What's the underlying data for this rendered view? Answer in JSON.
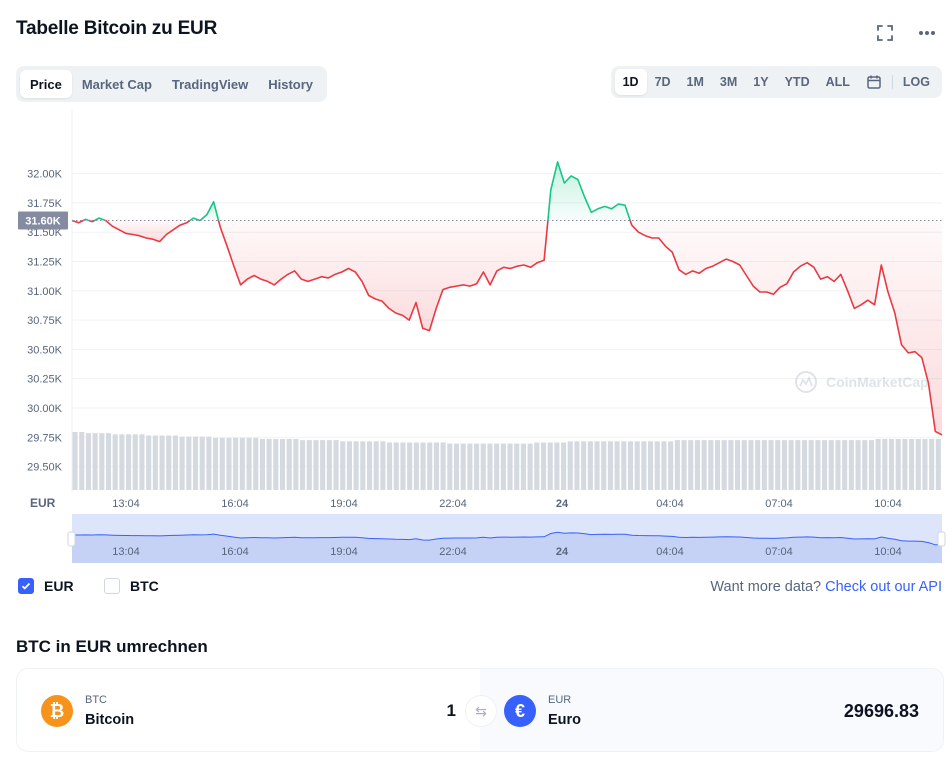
{
  "header": {
    "title": "Tabelle Bitcoin zu EUR",
    "icons": [
      "fullscreen-icon",
      "more-icon"
    ]
  },
  "tabs": [
    {
      "label": "Price",
      "active": true
    },
    {
      "label": "Market Cap",
      "active": false
    },
    {
      "label": "TradingView",
      "active": false
    },
    {
      "label": "History",
      "active": false
    }
  ],
  "ranges": {
    "items": [
      {
        "label": "1D",
        "active": true
      },
      {
        "label": "7D",
        "active": false
      },
      {
        "label": "1M",
        "active": false
      },
      {
        "label": "3M",
        "active": false
      },
      {
        "label": "1Y",
        "active": false
      },
      {
        "label": "YTD",
        "active": false
      },
      {
        "label": "ALL",
        "active": false
      }
    ],
    "calendar_icon": "calendar-icon",
    "log_label": "LOG"
  },
  "chart_data": {
    "type": "line",
    "xlabel": "EUR",
    "x_ticks": [
      "13:04",
      "16:04",
      "19:04",
      "22:04",
      "24",
      "04:04",
      "07:04",
      "10:04"
    ],
    "y_ticks": [
      "32.00K",
      "31.75K",
      "31.50K",
      "31.25K",
      "31.00K",
      "30.75K",
      "30.50K",
      "30.25K",
      "30.00K",
      "29.75K",
      "29.50K"
    ],
    "ylim": [
      29300,
      32500
    ],
    "reference_value": 31600,
    "reference_label": "31.60K",
    "colors": {
      "up": "#16c784",
      "down": "#ea3943",
      "reference": "#858ca2"
    },
    "watermark": "CoinMarketCap",
    "series": [
      {
        "values": [
          31600,
          31580,
          31610,
          31590,
          31620,
          31600,
          31550,
          31520,
          31490,
          31480,
          31470,
          31450,
          31440,
          31420,
          31480,
          31520,
          31560,
          31580,
          31620,
          31600,
          31650,
          31760,
          31540,
          31380,
          31210,
          31050,
          31100,
          31130,
          31100,
          31080,
          31050,
          31100,
          31140,
          31170,
          31100,
          31080,
          31100,
          31120,
          31110,
          31140,
          31160,
          31190,
          31160,
          31080,
          30960,
          30930,
          30910,
          30850,
          30810,
          30790,
          30750,
          30900,
          30680,
          30660,
          30850,
          31010,
          31030,
          31040,
          31050,
          31040,
          31060,
          31160,
          31050,
          31170,
          31200,
          31190,
          31210,
          31220,
          31200,
          31240,
          31260,
          31860,
          32100,
          31920,
          31980,
          31950,
          31800,
          31670,
          31700,
          31720,
          31700,
          31740,
          31730,
          31560,
          31500,
          31470,
          31450,
          31450,
          31380,
          31330,
          31180,
          31140,
          31170,
          31150,
          31190,
          31210,
          31240,
          31270,
          31250,
          31220,
          31130,
          31040,
          30990,
          30990,
          30970,
          31030,
          31060,
          31160,
          31210,
          31240,
          31200,
          31100,
          31120,
          31080,
          31140,
          31000,
          30850,
          30880,
          30920,
          30880,
          31220,
          30990,
          30810,
          30540,
          30470,
          30480,
          30430,
          30210,
          29800,
          29770
        ]
      }
    ],
    "volume": {
      "values": [
        50,
        50,
        49,
        49,
        49,
        49,
        48,
        48,
        48,
        48,
        48,
        47,
        47,
        47,
        47,
        47,
        46,
        46,
        46,
        46,
        46,
        45,
        45,
        45,
        45,
        45,
        45,
        45,
        44,
        44,
        44,
        44,
        44,
        44,
        43,
        43,
        43,
        43,
        43,
        43,
        42,
        42,
        42,
        42,
        42,
        42,
        42,
        41,
        41,
        41,
        41,
        41,
        41,
        41,
        41,
        41,
        40,
        40,
        40,
        40,
        40,
        40,
        40,
        40,
        40,
        40,
        40,
        40,
        40,
        41,
        41,
        41,
        41,
        41,
        42,
        42,
        42,
        42,
        42,
        42,
        42,
        42,
        42,
        42,
        42,
        42,
        42,
        42,
        42,
        42,
        43,
        43,
        43,
        43,
        43,
        43,
        43,
        43,
        43,
        43,
        43,
        43,
        43,
        43,
        43,
        43,
        43,
        43,
        43,
        43,
        43,
        43,
        43,
        43,
        43,
        43,
        43,
        43,
        43,
        43,
        44,
        44,
        44,
        44,
        44,
        44,
        44,
        44,
        44,
        44
      ]
    },
    "navigator": {
      "x_ticks": [
        "13:04",
        "16:04",
        "19:04",
        "22:04",
        "24",
        "04:04",
        "07:04",
        "10:04"
      ]
    }
  },
  "legend": [
    {
      "label": "EUR",
      "checked": true
    },
    {
      "label": "BTC",
      "checked": false
    }
  ],
  "more_data": {
    "text": "Want more data?",
    "link": "Check out our API"
  },
  "converter": {
    "title": "BTC in EUR umrechnen",
    "from": {
      "symbol": "BTC",
      "name": "Bitcoin",
      "amount": "1",
      "icon": "bitcoin-icon",
      "color": "#f7931a"
    },
    "to": {
      "symbol": "EUR",
      "name": "Euro",
      "amount": "29696.83",
      "icon": "euro-icon",
      "color": "#3861fb"
    },
    "swap_icon": "swap-icon"
  }
}
